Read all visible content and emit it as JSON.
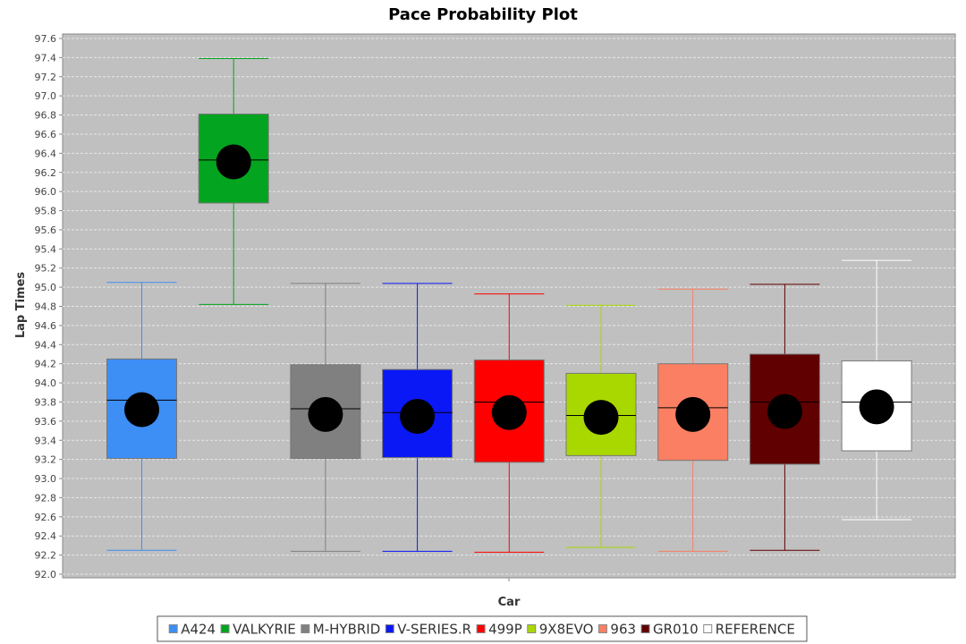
{
  "chart_data": {
    "type": "boxplot",
    "title": "Pace Probability Plot",
    "xlabel": "Car",
    "ylabel": "Lap Times",
    "ylim": [
      92.0,
      97.6
    ],
    "yticks": [
      92.0,
      92.2,
      92.4,
      92.6,
      92.8,
      93.0,
      93.2,
      93.4,
      93.6,
      93.8,
      94.0,
      94.2,
      94.4,
      94.6,
      94.8,
      95.0,
      95.2,
      95.4,
      95.6,
      95.8,
      96.0,
      96.2,
      96.4,
      96.6,
      96.8,
      97.0,
      97.2,
      97.4,
      97.6
    ],
    "grid": true,
    "legend_position": "bottom",
    "series": [
      {
        "name": "A424",
        "color": "#3d8ef5",
        "whisker_low": 92.25,
        "q1": 93.21,
        "median": 93.82,
        "q3": 94.25,
        "whisker_high": 95.05,
        "mean": 93.72
      },
      {
        "name": "VALKYRIE",
        "color": "#03a41f",
        "whisker_low": 94.82,
        "q1": 95.88,
        "median": 96.33,
        "q3": 96.81,
        "whisker_high": 97.39,
        "mean": 96.31
      },
      {
        "name": "M-HYBRID",
        "color": "#808080",
        "whisker_low": 92.24,
        "q1": 93.21,
        "median": 93.73,
        "q3": 94.19,
        "whisker_high": 95.04,
        "mean": 93.67
      },
      {
        "name": "V-SERIES.R",
        "color": "#0a18f5",
        "whisker_low": 92.24,
        "q1": 93.22,
        "median": 93.69,
        "q3": 94.14,
        "whisker_high": 95.04,
        "mean": 93.65
      },
      {
        "name": "499P",
        "color": "#ff0000",
        "whisker_low": 92.23,
        "q1": 93.17,
        "median": 93.8,
        "q3": 94.24,
        "whisker_high": 94.93,
        "mean": 93.69
      },
      {
        "name": "9X8EVO",
        "color": "#a8d800",
        "whisker_low": 92.28,
        "q1": 93.24,
        "median": 93.66,
        "q3": 94.1,
        "whisker_high": 94.81,
        "mean": 93.64
      },
      {
        "name": "963",
        "color": "#fa7f63",
        "whisker_low": 92.24,
        "q1": 93.19,
        "median": 93.74,
        "q3": 94.2,
        "whisker_high": 94.98,
        "mean": 93.67
      },
      {
        "name": "GR010",
        "color": "#600000",
        "whisker_low": 92.25,
        "q1": 93.15,
        "median": 93.8,
        "q3": 94.3,
        "whisker_high": 95.03,
        "mean": 93.7
      },
      {
        "name": "REFERENCE",
        "color": "#ffffff",
        "whisker_low": 92.57,
        "q1": 93.29,
        "median": 93.8,
        "q3": 94.23,
        "whisker_high": 95.28,
        "mean": 93.75
      }
    ]
  }
}
